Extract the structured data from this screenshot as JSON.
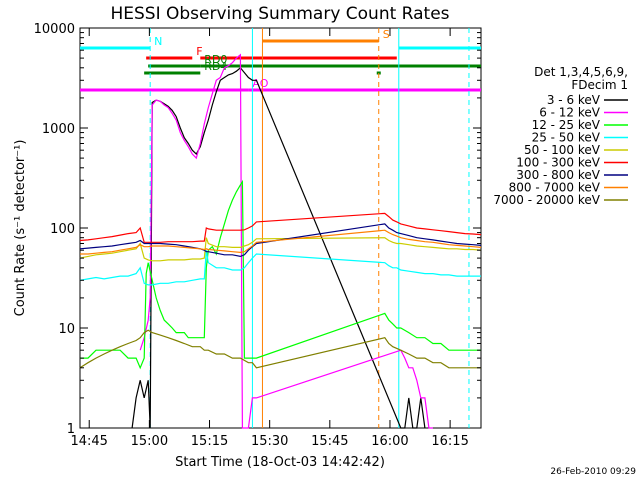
{
  "chart_data": {
    "type": "line",
    "title": "HESSI Observing Summary Count Rates",
    "xlabel": "Start Time (18-Oct-03 14:42:42)",
    "ylabel": "Count Rate (s⁻¹ detector⁻¹)",
    "x_unit": "minutes since 14:42:42",
    "xlim": [
      0,
      100
    ],
    "ylim": [
      1,
      10000
    ],
    "yscale": "log",
    "x_ticks": [
      {
        "label": "14:45",
        "x": 2.3
      },
      {
        "label": "15:00",
        "x": 17.3
      },
      {
        "label": "15:15",
        "x": 32.3
      },
      {
        "label": "15:30",
        "x": 47.3
      },
      {
        "label": "15:45",
        "x": 62.3
      },
      {
        "label": "16:00",
        "x": 77.3
      },
      {
        "label": "16:15",
        "x": 92.3
      }
    ],
    "y_ticks": [
      {
        "label": "1",
        "y": 1
      },
      {
        "label": "10",
        "y": 10
      },
      {
        "label": "100",
        "y": 100
      },
      {
        "label": "1000",
        "y": 1000
      },
      {
        "label": "10000",
        "y": 10000
      }
    ],
    "legend_header": [
      "Det 1,3,4,5,6,9,",
      "FDecim 1"
    ],
    "legend_position": "right",
    "series": [
      {
        "name": "3 - 6 keV",
        "color": "#000000",
        "x": [
          13,
          14,
          15,
          16,
          17,
          17.5,
          18,
          19,
          20,
          21,
          22,
          23,
          24,
          25,
          26,
          27,
          28,
          29,
          30,
          31,
          32,
          33,
          34,
          35,
          36,
          37,
          38,
          39,
          40,
          42,
          43,
          44,
          80,
          81,
          82,
          83,
          84,
          85,
          86
        ],
        "y": [
          1,
          2,
          3,
          2,
          3,
          1,
          1800,
          1900,
          1850,
          1750,
          1650,
          1500,
          1300,
          1000,
          800,
          700,
          600,
          550,
          650,
          900,
          1200,
          1700,
          2300,
          3000,
          3200,
          3400,
          3500,
          3700,
          4000,
          3200,
          3000,
          3000,
          1,
          1,
          2,
          1,
          1,
          2,
          1
        ]
      },
      {
        "name": "6 - 12 keV",
        "color": "#ff00ff",
        "x": [
          15,
          16,
          17,
          17.5,
          18,
          19,
          20,
          21,
          22,
          23,
          24,
          25,
          26,
          27,
          28,
          29,
          30,
          31,
          32,
          33,
          34,
          35,
          36,
          37,
          38,
          39,
          40,
          40.5,
          41,
          42,
          43,
          44,
          80,
          81,
          82,
          83,
          84,
          85,
          86,
          87,
          88
        ],
        "y": [
          6,
          8,
          12,
          20,
          1700,
          1900,
          1850,
          1700,
          1600,
          1400,
          1200,
          900,
          750,
          650,
          550,
          500,
          700,
          1100,
          1600,
          2200,
          3000,
          3200,
          4000,
          4200,
          4500,
          5000,
          5400,
          1,
          1,
          1,
          2,
          2,
          6,
          5,
          4,
          4,
          3,
          2,
          2,
          1,
          1
        ]
      },
      {
        "name": "12 - 25 keV",
        "color": "#00ff00",
        "x": [
          0,
          2,
          4,
          6,
          8,
          10,
          12,
          14,
          15,
          16,
          16.5,
          17,
          18,
          19,
          20,
          21,
          22,
          23,
          24,
          25,
          26,
          27,
          28,
          29,
          30,
          31,
          31.5,
          32,
          33,
          34,
          35,
          36,
          37,
          38,
          39,
          40,
          40.5,
          41,
          42,
          43,
          44,
          76,
          77,
          78,
          79,
          80,
          82,
          84,
          86,
          88,
          90,
          92,
          94,
          96,
          98,
          100
        ],
        "y": [
          5,
          5,
          6,
          6,
          6,
          6,
          5,
          5,
          4,
          5,
          35,
          45,
          30,
          20,
          15,
          12,
          11,
          10,
          9,
          9,
          9,
          8,
          8,
          8,
          8,
          8,
          40,
          60,
          65,
          55,
          80,
          110,
          150,
          190,
          230,
          270,
          290,
          5,
          5,
          5,
          5,
          14,
          12,
          11,
          10,
          10,
          9,
          8,
          8,
          7,
          7,
          6,
          6,
          6,
          6,
          6
        ]
      },
      {
        "name": "25 - 50 keV",
        "color": "#00ffff",
        "x": [
          0,
          2,
          4,
          6,
          8,
          10,
          12,
          14,
          15,
          16,
          17,
          18,
          20,
          22,
          24,
          26,
          28,
          30,
          31,
          31.5,
          32,
          34,
          36,
          38,
          40,
          41,
          42,
          43,
          44,
          76,
          77,
          78,
          79,
          80,
          82,
          84,
          86,
          88,
          90,
          92,
          94,
          96,
          98,
          100
        ],
        "y": [
          30,
          31,
          32,
          31,
          32,
          33,
          33,
          35,
          40,
          28,
          27,
          27,
          28,
          28,
          29,
          29,
          30,
          31,
          31,
          60,
          45,
          40,
          40,
          38,
          38,
          40,
          45,
          50,
          55,
          45,
          42,
          40,
          40,
          38,
          37,
          36,
          35,
          35,
          34,
          34,
          33,
          33,
          33,
          33
        ]
      },
      {
        "name": "50 - 100 keV",
        "color": "#cccc00",
        "x": [
          0,
          2,
          4,
          6,
          8,
          10,
          12,
          14,
          15,
          16,
          17,
          18,
          20,
          22,
          24,
          26,
          28,
          30,
          31,
          31.5,
          32,
          34,
          36,
          38,
          40,
          41,
          42,
          43,
          44,
          76,
          77,
          78,
          79,
          80,
          82,
          84,
          86,
          88,
          90,
          92,
          94,
          96,
          98,
          100
        ],
        "y": [
          50,
          52,
          54,
          55,
          56,
          58,
          60,
          62,
          70,
          50,
          48,
          47,
          47,
          48,
          48,
          48,
          49,
          49,
          50,
          80,
          70,
          65,
          65,
          64,
          64,
          66,
          68,
          72,
          78,
          80,
          75,
          72,
          70,
          70,
          68,
          66,
          65,
          64,
          63,
          62,
          62,
          61,
          61,
          60
        ]
      },
      {
        "name": "100 - 300 keV",
        "color": "#ff0000",
        "x": [
          0,
          2,
          4,
          6,
          8,
          10,
          12,
          14,
          15,
          16,
          17,
          18,
          20,
          22,
          24,
          26,
          28,
          30,
          31,
          31.5,
          32,
          34,
          36,
          38,
          40,
          41,
          42,
          43,
          44,
          76,
          77,
          78,
          79,
          80,
          82,
          84,
          86,
          88,
          90,
          92,
          94,
          96,
          98,
          100
        ],
        "y": [
          75,
          76,
          78,
          80,
          82,
          85,
          88,
          90,
          100,
          72,
          72,
          72,
          72,
          73,
          73,
          73,
          73,
          74,
          74,
          100,
          98,
          95,
          95,
          95,
          95,
          96,
          100,
          105,
          115,
          140,
          130,
          120,
          115,
          110,
          105,
          100,
          98,
          96,
          94,
          92,
          90,
          88,
          87,
          86
        ]
      },
      {
        "name": "300 - 800 keV",
        "color": "#000080",
        "x": [
          0,
          2,
          4,
          6,
          8,
          10,
          12,
          14,
          15,
          16,
          17,
          18,
          20,
          22,
          24,
          26,
          28,
          30,
          31,
          31.5,
          32,
          34,
          36,
          38,
          40,
          41,
          42,
          43,
          44,
          76,
          77,
          78,
          79,
          80,
          82,
          84,
          86,
          88,
          90,
          92,
          94,
          96,
          98,
          100
        ],
        "y": [
          62,
          63,
          64,
          65,
          66,
          68,
          70,
          72,
          75,
          70,
          70,
          70,
          70,
          69,
          68,
          66,
          64,
          62,
          60,
          58,
          58,
          56,
          54,
          54,
          52,
          54,
          60,
          65,
          70,
          110,
          100,
          95,
          90,
          88,
          84,
          80,
          78,
          76,
          74,
          72,
          70,
          69,
          68,
          67
        ]
      },
      {
        "name": "800 - 7000 keV",
        "color": "#ff8000",
        "x": [
          0,
          2,
          4,
          6,
          8,
          10,
          12,
          14,
          15,
          16,
          17,
          18,
          20,
          22,
          24,
          26,
          28,
          30,
          31,
          31.5,
          32,
          34,
          36,
          38,
          40,
          41,
          42,
          43,
          44,
          76,
          77,
          78,
          79,
          80,
          82,
          84,
          86,
          88,
          90,
          92,
          94,
          96,
          98,
          100
        ],
        "y": [
          55,
          55,
          56,
          57,
          58,
          60,
          62,
          64,
          68,
          65,
          65,
          66,
          66,
          66,
          65,
          64,
          63,
          62,
          61,
          62,
          61,
          60,
          59,
          58,
          57,
          58,
          62,
          66,
          72,
          95,
          90,
          86,
          83,
          80,
          77,
          75,
          73,
          72,
          70,
          68,
          67,
          66,
          65,
          64
        ]
      },
      {
        "name": "7000 - 20000 keV",
        "color": "#808000",
        "x": [
          0,
          2,
          4,
          6,
          8,
          10,
          12,
          14,
          15,
          16,
          17,
          18,
          20,
          22,
          24,
          26,
          28,
          30,
          31,
          32,
          34,
          36,
          38,
          40,
          42,
          43,
          44,
          76,
          77,
          78,
          80,
          82,
          84,
          86,
          88,
          90,
          92,
          94,
          96,
          98,
          100
        ],
        "y": [
          4,
          4.5,
          5,
          5.5,
          6,
          6.5,
          7,
          7.5,
          8,
          9,
          9.5,
          9,
          8.5,
          8,
          7.5,
          7,
          6.5,
          6.5,
          6,
          6,
          5.5,
          5.5,
          5,
          5,
          4.5,
          4.5,
          4,
          8,
          7,
          6.5,
          6,
          5.5,
          5,
          5,
          4.5,
          4.5,
          4,
          4,
          4,
          4,
          4
        ]
      }
    ],
    "status_flags": [
      {
        "label": "N",
        "color": "#00ffff",
        "segments": [
          [
            0,
            17.5
          ],
          [
            79.5,
            100
          ]
        ]
      },
      {
        "label": "S",
        "color": "#ff8000",
        "segments": [
          [
            45.5,
            74.5
          ]
        ]
      },
      {
        "label": "F",
        "color": "#ff0000",
        "segments": [
          [
            16.5,
            28
          ],
          [
            30,
            79
          ]
        ]
      },
      {
        "label": "RD0",
        "color": "#008000",
        "segments": [
          [
            17,
            30
          ],
          [
            30,
            100
          ]
        ]
      },
      {
        "label": "RD4",
        "color": "#008000",
        "segments": [
          [
            16,
            30
          ],
          [
            74,
            75
          ]
        ]
      },
      {
        "label": "AO",
        "color": "#ff00ff",
        "segments": [
          [
            0,
            42
          ],
          [
            42,
            100
          ]
        ]
      }
    ]
  },
  "footer": {
    "date": "26-Feb-2010 09:29"
  }
}
